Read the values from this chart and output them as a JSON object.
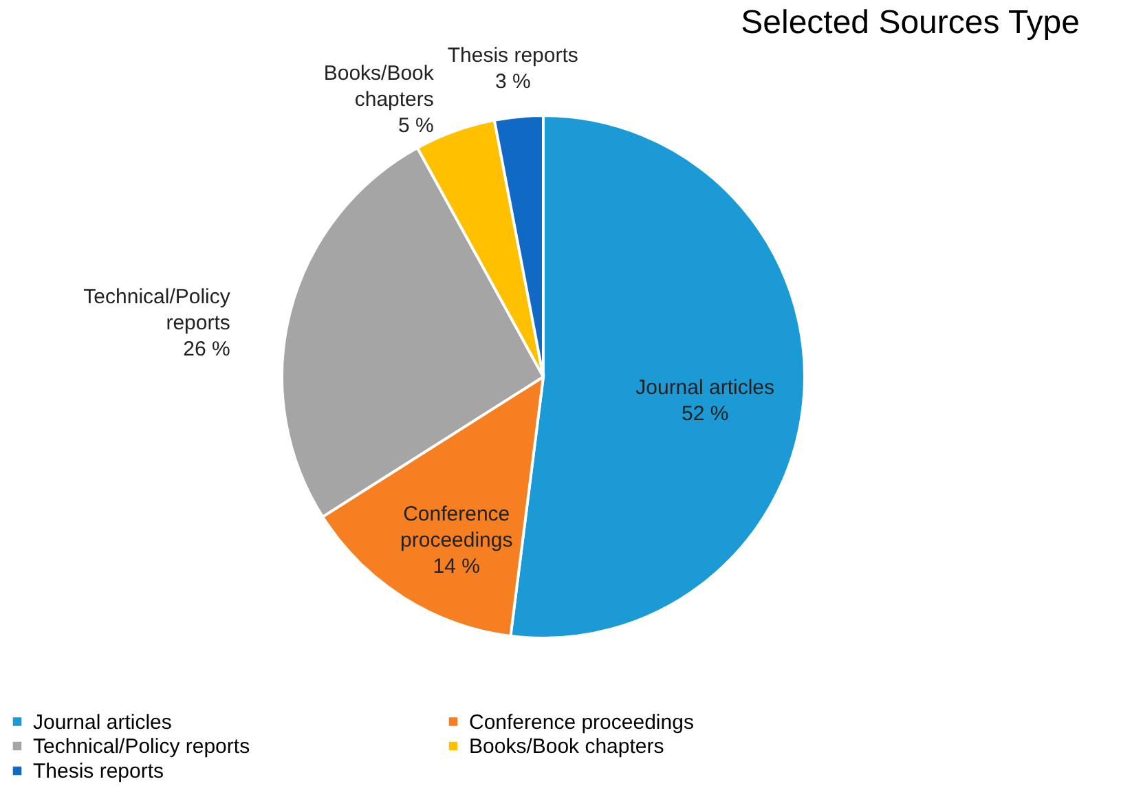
{
  "chart_data": {
    "type": "pie",
    "title": "Selected Sources Type",
    "categories": [
      "Journal articles",
      "Conference proceedings",
      "Technical/Policy reports",
      "Books/Book chapters",
      "Thesis reports"
    ],
    "values": [
      52,
      14,
      26,
      5,
      3
    ],
    "colors": [
      "#1b9ad6",
      "#f57f21",
      "#a5a5a5",
      "#ffc000",
      "#1069c4"
    ],
    "value_labels": [
      "52 %",
      "14 %",
      "26 %",
      "5 %",
      "3 %"
    ],
    "legend": "bottom"
  }
}
